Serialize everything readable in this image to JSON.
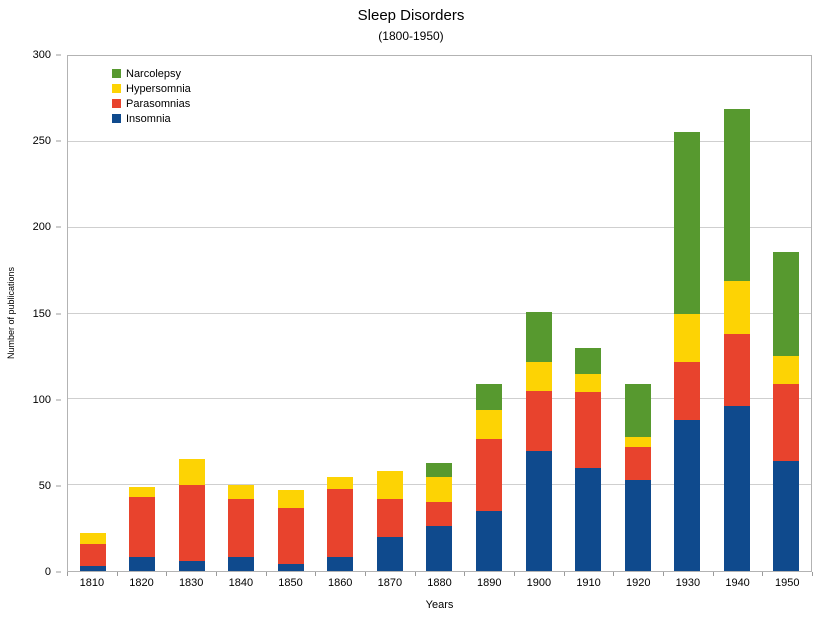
{
  "title": "Sleep Disorders",
  "subtitle": "(1800-1950)",
  "chart_data": {
    "type": "bar",
    "stacked": true,
    "title": "Sleep Disorders",
    "subtitle": "(1800-1950)",
    "xlabel": "Years",
    "ylabel": "Number of publications",
    "ylim": [
      0,
      300
    ],
    "yticks": [
      0,
      50,
      100,
      150,
      200,
      250,
      300
    ],
    "grid": true,
    "legend_position": "top-left",
    "legend_order": [
      "Narcolepsy",
      "Hypersomnia",
      "Parasomnias",
      "Insomnia"
    ],
    "categories": [
      "1810",
      "1820",
      "1830",
      "1840",
      "1850",
      "1860",
      "1870",
      "1880",
      "1890",
      "1900",
      "1910",
      "1920",
      "1930",
      "1940",
      "1950"
    ],
    "series": [
      {
        "name": "Insomnia",
        "color": "#0f4a8d",
        "values": [
          3,
          8,
          6,
          8,
          4,
          8,
          20,
          26,
          35,
          70,
          60,
          53,
          88,
          96,
          64
        ]
      },
      {
        "name": "Parasomnias",
        "color": "#e8432d",
        "values": [
          13,
          35,
          44,
          34,
          33,
          40,
          22,
          14,
          42,
          35,
          44,
          19,
          34,
          42,
          45
        ]
      },
      {
        "name": "Hypersomnia",
        "color": "#fdd304",
        "values": [
          6,
          6,
          15,
          8,
          10,
          7,
          16,
          15,
          17,
          17,
          11,
          6,
          28,
          31,
          16
        ]
      },
      {
        "name": "Narcolepsy",
        "color": "#57992f",
        "values": [
          0,
          0,
          0,
          0,
          0,
          0,
          0,
          8,
          15,
          29,
          15,
          31,
          106,
          100,
          61
        ]
      }
    ],
    "totals": [
      22,
      49,
      65,
      50,
      47,
      55,
      58,
      63,
      109,
      151,
      130,
      109,
      256,
      269,
      186
    ]
  }
}
